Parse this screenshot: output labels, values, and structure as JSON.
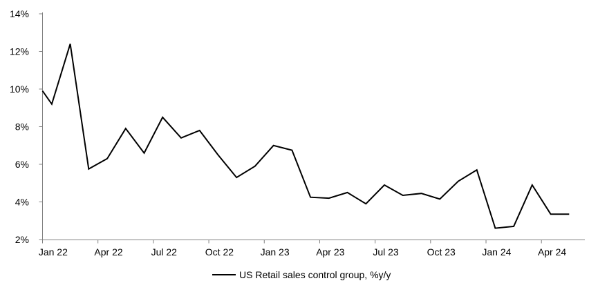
{
  "chart_data": {
    "type": "line",
    "title": "",
    "xlabel": "",
    "ylabel": "",
    "x": [
      "Dec 21",
      "Jan 22",
      "Feb 22",
      "Mar 22",
      "Apr 22",
      "May 22",
      "Jun 22",
      "Jul 22",
      "Aug 22",
      "Sep 22",
      "Oct 22",
      "Nov 22",
      "Dec 22",
      "Jan 23",
      "Feb 23",
      "Mar 23",
      "Apr 23",
      "May 23",
      "Jun 23",
      "Jul 23",
      "Aug 23",
      "Sep 23",
      "Oct 23",
      "Nov 23",
      "Dec 23",
      "Jan 24",
      "Feb 24",
      "Mar 24",
      "Apr 24",
      "May 24"
    ],
    "series": [
      {
        "name": "US Retail sales control group, %y/y",
        "values": [
          9.9,
          9.2,
          12.4,
          5.75,
          6.3,
          7.9,
          6.6,
          8.5,
          7.4,
          7.8,
          6.5,
          5.3,
          5.9,
          7.0,
          6.75,
          4.25,
          4.2,
          4.5,
          3.9,
          4.9,
          4.35,
          4.45,
          4.15,
          5.1,
          5.7,
          2.6,
          2.7,
          4.9,
          3.35,
          3.35
        ]
      }
    ],
    "x_tick_labels": [
      "Jan 22",
      "Apr 22",
      "Jul 22",
      "Oct 22",
      "Jan 23",
      "Apr 23",
      "Jul 23",
      "Oct 23",
      "Jan 24",
      "Apr 24"
    ],
    "x_tick_interval_months": 3,
    "y_ticks": [
      2,
      4,
      6,
      8,
      10,
      12,
      14
    ],
    "y_tick_suffix": "%",
    "ylim": [
      2,
      14
    ],
    "grid": false,
    "legend": {
      "label": "US Retail sales control group, %y/y",
      "position": "bottom-center"
    },
    "colors": {
      "line": "#000000",
      "axis": "#808080",
      "text": "#000000",
      "background": "#ffffff"
    }
  }
}
